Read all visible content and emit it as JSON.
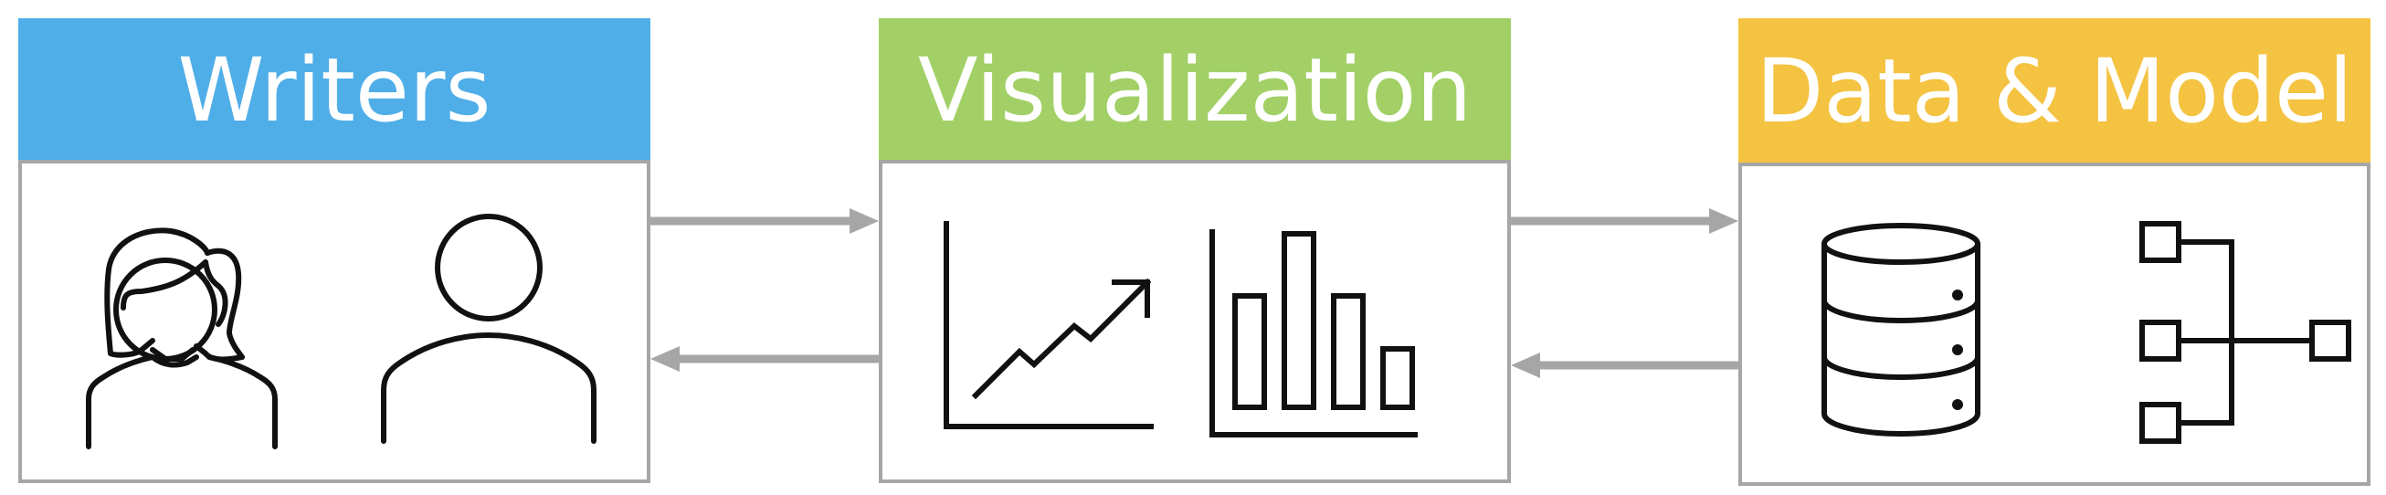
{
  "panels": {
    "writers": {
      "title": "Writers",
      "color": "#4faee8"
    },
    "visualization": {
      "title": "Visualization",
      "color": "#a2d066"
    },
    "data_model": {
      "title": "Data & Model",
      "color": "#f4c342"
    }
  },
  "icons": {
    "writers": [
      "woman-user-icon",
      "user-icon"
    ],
    "visualization": [
      "line-chart-icon",
      "bar-chart-icon"
    ],
    "data_model": [
      "database-icon",
      "tree-structure-icon"
    ]
  },
  "colors": {
    "border": "#a6a6a6",
    "arrow": "#a6a6a6",
    "icon_stroke": "#111111"
  }
}
